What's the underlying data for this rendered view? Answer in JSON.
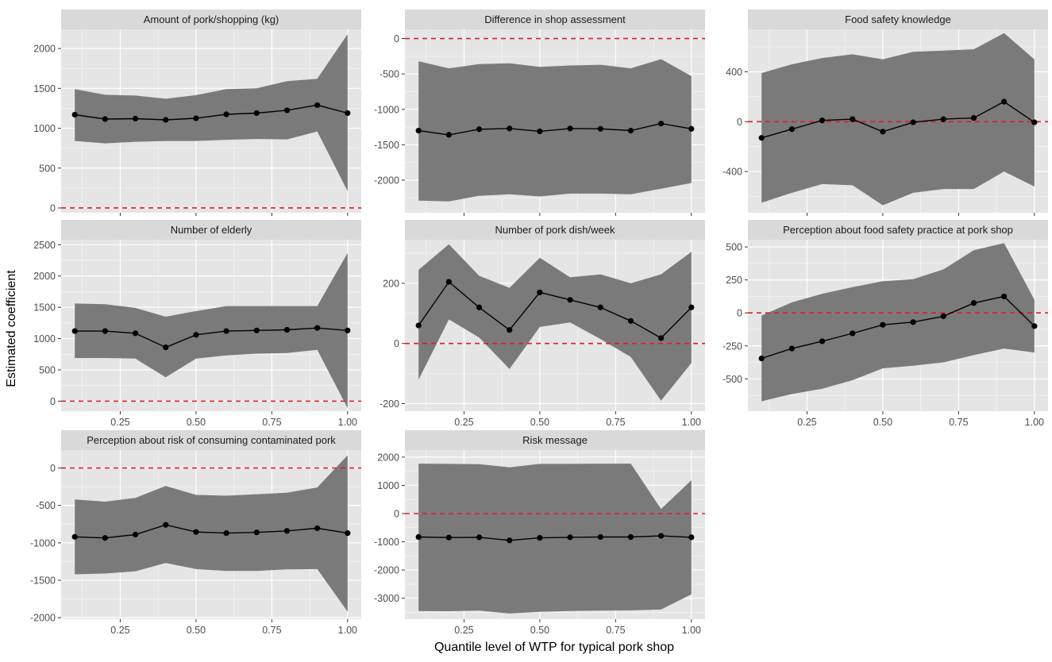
{
  "figure": {
    "ylabel": "Estimated coefficient",
    "xlabel": "Quantile level of WTP for typical pork shop",
    "x_ticks": [
      0.25,
      0.5,
      0.75,
      1.0
    ],
    "x_tick_labels": [
      "0.25",
      "0.50",
      "0.75",
      "1.00"
    ],
    "xlim": [
      0.055,
      1.045
    ],
    "colors": {
      "panel_bg": "#e5e5e5",
      "strip_bg": "#d9d9d9",
      "grid": "#ffffff",
      "ribbon": "#7a7a7a",
      "line": "#000000",
      "reference": "#e41a1c"
    }
  },
  "chart_data": [
    {
      "type": "line",
      "title": "Amount of pork/shopping (kg)",
      "x": [
        0.1,
        0.2,
        0.3,
        0.4,
        0.5,
        0.6,
        0.7,
        0.8,
        0.9,
        1.0
      ],
      "y": [
        1170,
        1115,
        1120,
        1105,
        1125,
        1175,
        1190,
        1225,
        1290,
        1190
      ],
      "lower": [
        840,
        810,
        830,
        840,
        840,
        855,
        865,
        860,
        960,
        210
      ],
      "upper": [
        1490,
        1420,
        1410,
        1370,
        1415,
        1490,
        1500,
        1590,
        1620,
        2180
      ],
      "reference_line": 0,
      "ylim": [
        -60,
        2240
      ],
      "y_ticks": [
        0,
        500,
        1000,
        1500,
        2000
      ],
      "y_tick_labels": [
        "0",
        "500",
        "1000",
        "1500",
        "2000"
      ]
    },
    {
      "type": "line",
      "title": "Difference in shop assessment",
      "x": [
        0.1,
        0.2,
        0.3,
        0.4,
        0.5,
        0.6,
        0.7,
        0.8,
        0.9,
        1.0
      ],
      "y": [
        -1300,
        -1360,
        -1280,
        -1270,
        -1310,
        -1270,
        -1275,
        -1300,
        -1200,
        -1275
      ],
      "lower": [
        -2290,
        -2300,
        -2220,
        -2200,
        -2230,
        -2190,
        -2190,
        -2200,
        -2120,
        -2040
      ],
      "upper": [
        -320,
        -420,
        -360,
        -350,
        -400,
        -380,
        -370,
        -420,
        -290,
        -530
      ],
      "reference_line": 0,
      "ylim": [
        -2460,
        130
      ],
      "y_ticks": [
        -2000,
        -1500,
        -1000,
        -500,
        0
      ],
      "y_tick_labels": [
        "-2000",
        "-1500",
        "-1000",
        "-500",
        "0"
      ]
    },
    {
      "type": "line",
      "title": "Food safety knowledge",
      "x": [
        0.1,
        0.2,
        0.3,
        0.4,
        0.5,
        0.6,
        0.7,
        0.8,
        0.9,
        1.0
      ],
      "y": [
        -130,
        -60,
        10,
        20,
        -80,
        -5,
        20,
        30,
        160,
        -5
      ],
      "lower": [
        -650,
        -570,
        -500,
        -510,
        -670,
        -570,
        -540,
        -540,
        -400,
        -520
      ],
      "upper": [
        390,
        460,
        510,
        540,
        500,
        560,
        570,
        580,
        710,
        500
      ],
      "reference_line": 0,
      "ylim": [
        -730,
        740
      ],
      "y_ticks": [
        -400,
        0,
        400
      ],
      "y_tick_labels": [
        "-400",
        "0",
        "400"
      ]
    },
    {
      "type": "line",
      "title": "Number of elderly",
      "x": [
        0.1,
        0.2,
        0.3,
        0.4,
        0.5,
        0.6,
        0.7,
        0.8,
        0.9,
        1.0
      ],
      "y": [
        1120,
        1120,
        1085,
        860,
        1060,
        1120,
        1130,
        1140,
        1170,
        1130
      ],
      "lower": [
        690,
        690,
        680,
        380,
        680,
        730,
        760,
        770,
        820,
        -110
      ],
      "upper": [
        1560,
        1550,
        1490,
        1350,
        1440,
        1520,
        1520,
        1520,
        1520,
        2370
      ],
      "reference_line": 0,
      "ylim": [
        -160,
        2580
      ],
      "y_ticks": [
        0,
        500,
        1000,
        1500,
        2000,
        2500
      ],
      "y_tick_labels": [
        "0",
        "500",
        "1000",
        "1500",
        "2000",
        "2500"
      ]
    },
    {
      "type": "line",
      "title": "Number of pork dish/week",
      "x": [
        0.1,
        0.2,
        0.3,
        0.4,
        0.5,
        0.6,
        0.7,
        0.8,
        0.9,
        1.0
      ],
      "y": [
        60,
        205,
        120,
        45,
        170,
        145,
        120,
        75,
        18,
        120
      ],
      "lower": [
        -120,
        80,
        20,
        -85,
        55,
        70,
        15,
        -45,
        -190,
        -65
      ],
      "upper": [
        245,
        330,
        225,
        185,
        285,
        220,
        230,
        200,
        230,
        305
      ],
      "reference_line": 0,
      "ylim": [
        -225,
        345
      ],
      "y_ticks": [
        -200,
        0,
        200
      ],
      "y_tick_labels": [
        "-200",
        "0",
        "200"
      ]
    },
    {
      "type": "line",
      "title": "Perception about food safety practice at pork shop",
      "x": [
        0.1,
        0.2,
        0.3,
        0.4,
        0.5,
        0.6,
        0.7,
        0.8,
        0.9,
        1.0
      ],
      "y": [
        -345,
        -270,
        -215,
        -155,
        -90,
        -70,
        -25,
        75,
        125,
        -100
      ],
      "lower": [
        -670,
        -615,
        -575,
        -510,
        -420,
        -400,
        -375,
        -320,
        -270,
        -300
      ],
      "upper": [
        -20,
        80,
        145,
        195,
        240,
        255,
        330,
        475,
        530,
        100
      ],
      "reference_line": 0,
      "ylim": [
        -745,
        555
      ],
      "y_ticks": [
        -500,
        -250,
        0,
        250,
        500
      ],
      "y_tick_labels": [
        "-500",
        "-250",
        "0",
        "250",
        "500"
      ]
    },
    {
      "type": "line",
      "title": "Perception about risk of consuming contaminated pork",
      "x": [
        0.1,
        0.2,
        0.3,
        0.4,
        0.5,
        0.6,
        0.7,
        0.8,
        0.9,
        1.0
      ],
      "y": [
        -920,
        -935,
        -890,
        -760,
        -855,
        -870,
        -860,
        -840,
        -805,
        -870
      ],
      "lower": [
        -1420,
        -1410,
        -1380,
        -1270,
        -1350,
        -1375,
        -1375,
        -1355,
        -1350,
        -1920
      ],
      "upper": [
        -420,
        -450,
        -400,
        -240,
        -360,
        -370,
        -350,
        -330,
        -260,
        170
      ],
      "reference_line": 0,
      "ylim": [
        -2020,
        240
      ],
      "y_ticks": [
        -2000,
        -1500,
        -1000,
        -500,
        0
      ],
      "y_tick_labels": [
        "-2000",
        "-1500",
        "-1000",
        "-500",
        "0"
      ]
    },
    {
      "type": "line",
      "title": "Risk message",
      "x": [
        0.1,
        0.2,
        0.3,
        0.4,
        0.5,
        0.6,
        0.7,
        0.8,
        0.9,
        1.0
      ],
      "y": [
        -830,
        -850,
        -840,
        -950,
        -860,
        -840,
        -830,
        -830,
        -790,
        -840
      ],
      "lower": [
        -3450,
        -3460,
        -3440,
        -3540,
        -3480,
        -3450,
        -3440,
        -3430,
        -3400,
        -2860
      ],
      "upper": [
        1770,
        1760,
        1750,
        1640,
        1760,
        1760,
        1770,
        1770,
        160,
        1180
      ],
      "reference_line": 0,
      "ylim": [
        -3740,
        2250
      ],
      "y_ticks": [
        -3000,
        -2000,
        -1000,
        0,
        1000,
        2000
      ],
      "y_tick_labels": [
        "-3000",
        "-2000",
        "-1000",
        "0",
        "1000",
        "2000"
      ]
    }
  ]
}
